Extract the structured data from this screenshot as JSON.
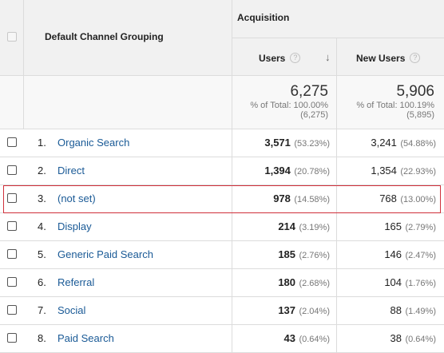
{
  "table": {
    "headers": {
      "dimension": "Default Channel Grouping",
      "group": "Acquisition",
      "users": "Users",
      "new_users": "New Users",
      "help_glyph": "?",
      "sort_glyph": "↓"
    },
    "totals": {
      "users": {
        "value": "6,275",
        "line1": "% of Total: 100.00%",
        "line2": "(6,275)"
      },
      "new_users": {
        "value": "5,906",
        "line1": "% of Total: 100.19%",
        "line2": "(5,895)"
      }
    },
    "rows": [
      {
        "num": "1.",
        "label": "Organic Search",
        "users": "3,571",
        "users_pct": "(53.23%)",
        "new_users": "3,241",
        "new_users_pct": "(54.88%)"
      },
      {
        "num": "2.",
        "label": "Direct",
        "users": "1,394",
        "users_pct": "(20.78%)",
        "new_users": "1,354",
        "new_users_pct": "(22.93%)"
      },
      {
        "num": "3.",
        "label": "(not set)",
        "users": "978",
        "users_pct": "(14.58%)",
        "new_users": "768",
        "new_users_pct": "(13.00%)"
      },
      {
        "num": "4.",
        "label": "Display",
        "users": "214",
        "users_pct": "(3.19%)",
        "new_users": "165",
        "new_users_pct": "(2.79%)"
      },
      {
        "num": "5.",
        "label": "Generic Paid Search",
        "users": "185",
        "users_pct": "(2.76%)",
        "new_users": "146",
        "new_users_pct": "(2.47%)"
      },
      {
        "num": "6.",
        "label": "Referral",
        "users": "180",
        "users_pct": "(2.68%)",
        "new_users": "104",
        "new_users_pct": "(1.76%)"
      },
      {
        "num": "7.",
        "label": "Social",
        "users": "137",
        "users_pct": "(2.04%)",
        "new_users": "88",
        "new_users_pct": "(1.49%)"
      },
      {
        "num": "8.",
        "label": "Paid Search",
        "users": "43",
        "users_pct": "(0.64%)",
        "new_users": "38",
        "new_users_pct": "(0.64%)"
      }
    ]
  },
  "colors": {
    "link": "#1a5a96",
    "highlight": "#d0303b",
    "header_bg": "#f1f1f1"
  }
}
